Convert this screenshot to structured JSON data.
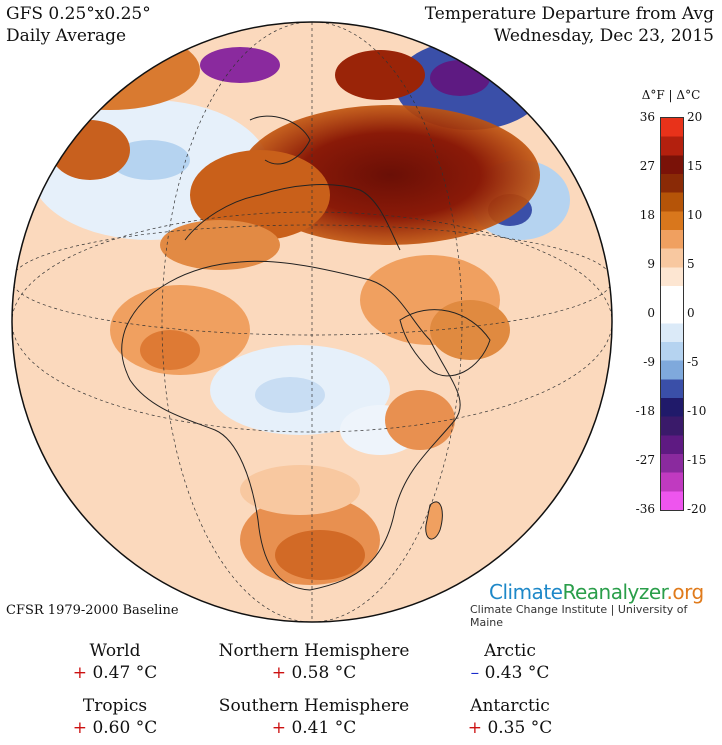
{
  "header": {
    "model": "GFS 0.25°x0.25°",
    "period": "Daily Average",
    "title": "Temperature Departure from Avg",
    "date": "Wednesday, Dec 23, 2015"
  },
  "colorbar": {
    "title": "Δ°F | Δ°C",
    "fahrenheit_ticks": [
      "36",
      "27",
      "18",
      "9",
      "0",
      "-9",
      "-18",
      "-27",
      "-36"
    ],
    "celsius_ticks": [
      "20",
      "15",
      "10",
      "5",
      "0",
      "-5",
      "-10",
      "-15",
      "-20"
    ],
    "colors_top_to_bottom": [
      "#e8321a",
      "#b3200e",
      "#7a1208",
      "#8a2a06",
      "#b55408",
      "#d9771c",
      "#f0a060",
      "#f8c8a0",
      "#fde6d2",
      "#ffffff",
      "#ffffff",
      "#dbeaf8",
      "#b5d3f0",
      "#7fa9dc",
      "#3a4fa8",
      "#201a6a",
      "#3a1a6a",
      "#5e1a82",
      "#8a2a9e",
      "#c03ac0",
      "#ee55ee"
    ]
  },
  "baseline": "CFSR 1979-2000 Baseline",
  "brand": {
    "part1": "Climate",
    "part2": "Reanalyzer",
    "part3": ".org",
    "subtitle": "Climate Change Institute | University of Maine"
  },
  "stats": {
    "world": {
      "label": "World",
      "sign": "+",
      "value": "0.47 °C"
    },
    "nh": {
      "label": "Northern Hemisphere",
      "sign": "+",
      "value": "0.58 °C"
    },
    "arctic": {
      "label": "Arctic",
      "sign": "–",
      "value": "0.43 °C"
    },
    "tropics": {
      "label": "Tropics",
      "sign": "+",
      "value": "0.60 °C"
    },
    "sh": {
      "label": "Southern Hemisphere",
      "sign": "+",
      "value": "0.41 °C"
    },
    "antarctic": {
      "label": "Antarctic",
      "sign": "+",
      "value": "0.35 °C"
    }
  },
  "colors": {
    "warm_strong": "#7a1208",
    "warm": "#e08a40",
    "warm_light": "#f8c8a0",
    "cold": "#3a4fa8",
    "cold_light": "#b5d3f0",
    "extreme_cold": "#a030a8"
  }
}
